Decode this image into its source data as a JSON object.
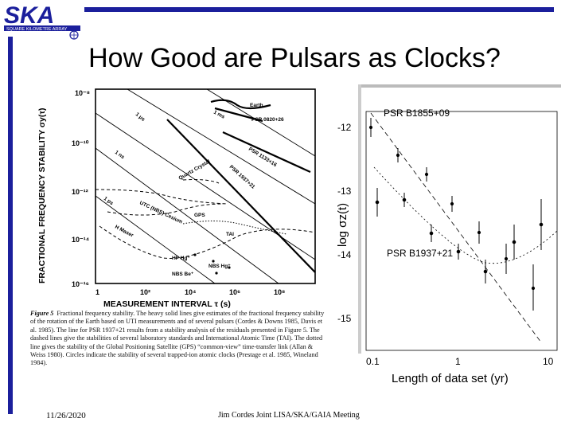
{
  "logo": {
    "name": "SKA",
    "subtitle": "SQUARE KILOMETRE ARRAY"
  },
  "title": "How Good are Pulsars as Clocks?",
  "left_plot": {
    "ylabel": "FRACTIONAL FREQUENCY STABILITY σy(τ)",
    "xlabel": "MEASUREMENT INTERVAL τ (s)",
    "yticks": [
      "10⁻⁸",
      "10⁻¹⁰",
      "10⁻¹²",
      "10⁻¹⁴",
      "10⁻¹⁶"
    ],
    "xticks": [
      "1",
      "10²",
      "10⁴",
      "10⁶",
      "10⁸"
    ],
    "labels": {
      "earth": "Earth",
      "psr0820": "PSR 0820+26",
      "psr1133": "PSR 1133+16",
      "psr1937": "PSR 1937+21",
      "quartz": "Quartz Crystal",
      "utc": "UTC (NBS) Cesium",
      "gps": "GPS",
      "tai": "TAI",
      "hmaser": "H Maser",
      "hp": "HP Hg⁺",
      "nbsbe": "NBS Be⁺",
      "nbshg": "NBS Hg⁺",
      "l1": "1 μs",
      "l2": "1 ms",
      "l3": "1 ns",
      "l4": "1 ps"
    },
    "caption_head": "Figure 5",
    "caption": "Fractional frequency stability. The heavy solid lines give estimates of the fractional frequency stability of the rotation of the Earth based on UTI measurements and of several pulsars (Cordes & Downs 1985, Davis et al. 1985). The line for PSR 1937+21 results from a stability analysis of the residuals presented in Figure 5. The dashed lines give the stabilities of several laboratory standards and International Atomic Time (TAI). The dotted line gives the stability of the Global Positioning Satellite (GPS) “common-view” time-transfer link (Allan & Weiss 1980). Circles indicate the stability of several trapped-ion atomic clocks (Prestage et al. 1985, Wineland 1984)."
  },
  "right_plot": {
    "ylabel": "log σz(t)",
    "xlabel": "Length of data set (yr)",
    "yticks": [
      "-12",
      "-13",
      "-14",
      "-15"
    ],
    "xticks": [
      "0.1",
      "1",
      "10"
    ],
    "series_labels": [
      "PSR B1855+09",
      "PSR B1937+21"
    ]
  },
  "footer": {
    "date": "11/26/2020",
    "text": "Jim Cordes   Joint LISA/SKA/GAIA Meeting"
  }
}
